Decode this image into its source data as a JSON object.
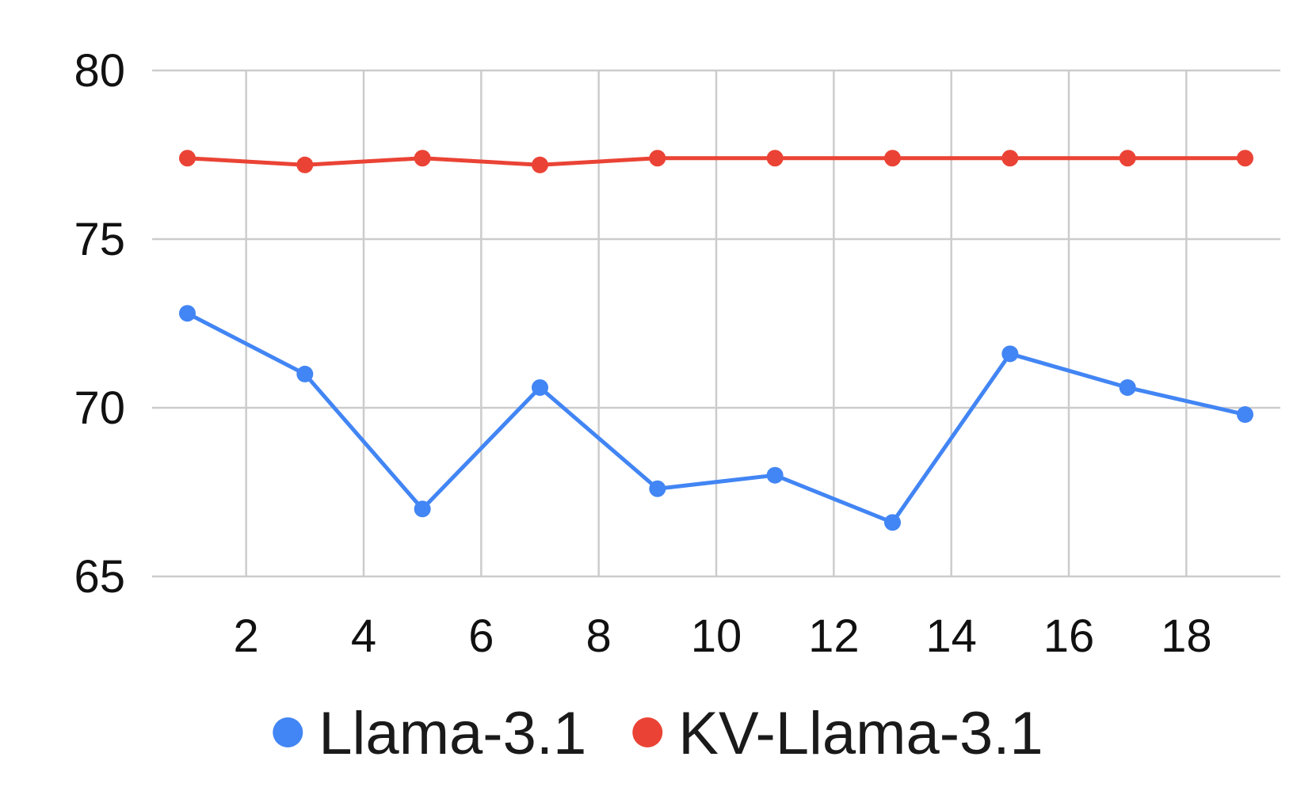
{
  "chart_data": {
    "type": "line",
    "title": "",
    "xlabel": "",
    "ylabel": "",
    "x": [
      1,
      3,
      5,
      7,
      9,
      11,
      13,
      15,
      17,
      19
    ],
    "xlim": [
      0.4,
      19.6
    ],
    "ylim": [
      65,
      80
    ],
    "x_ticks": [
      2,
      4,
      6,
      8,
      10,
      12,
      14,
      16,
      18
    ],
    "y_ticks": [
      65,
      70,
      75,
      80
    ],
    "x_tick_labels": [
      "2",
      "4",
      "6",
      "8",
      "10",
      "12",
      "14",
      "16",
      "18"
    ],
    "y_tick_labels": [
      "65",
      "70",
      "75",
      "80"
    ],
    "grid": true,
    "legend_position": "bottom",
    "series": [
      {
        "name": "Llama-3.1",
        "color": "#4285f4",
        "values": [
          72.8,
          71.0,
          67.0,
          70.6,
          67.6,
          68.0,
          66.6,
          71.6,
          70.6,
          69.8
        ]
      },
      {
        "name": "KV-Llama-3.1",
        "color": "#ea4335",
        "values": [
          77.4,
          77.2,
          77.4,
          77.2,
          77.4,
          77.4,
          77.4,
          77.4,
          77.4,
          77.4
        ]
      }
    ]
  }
}
